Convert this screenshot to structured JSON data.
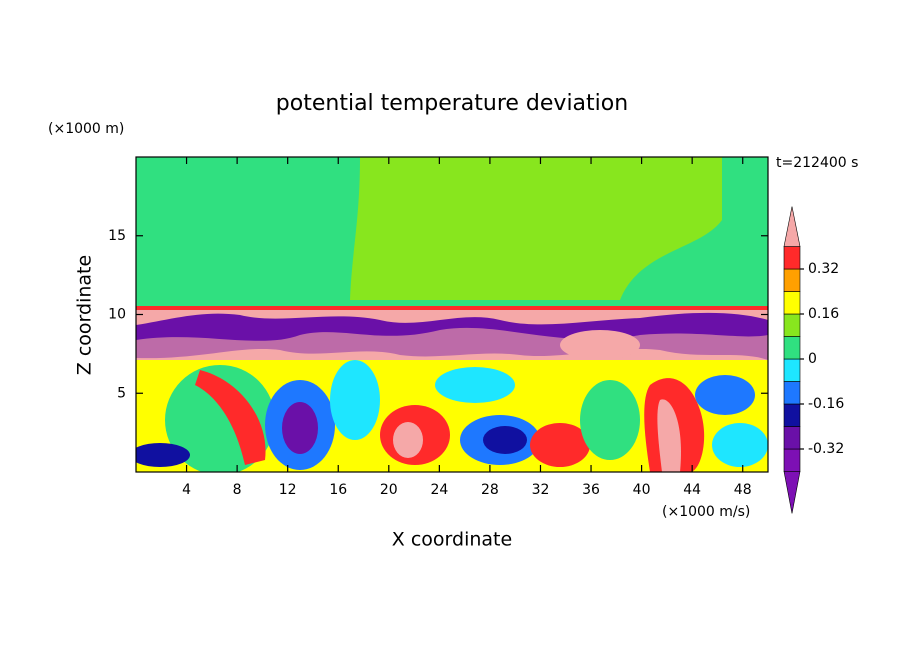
{
  "chart_data": {
    "type": "contour",
    "title": "potential temperature deviation",
    "y_unit": "(×1000 m)",
    "x_unit": "(×1000 m/s)",
    "time_label": "t=212400 s",
    "xlabel": "X coordinate",
    "ylabel": "Z coordinate",
    "xlim": [
      0,
      50
    ],
    "ylim": [
      0,
      20
    ],
    "xticks": [
      4,
      8,
      12,
      16,
      20,
      24,
      28,
      32,
      36,
      40,
      44,
      48
    ],
    "yticks": [
      5,
      10,
      15
    ],
    "levels": [
      -0.4,
      -0.32,
      -0.24,
      -0.16,
      -0.08,
      0,
      0.08,
      0.16,
      0.24,
      0.32,
      0.4
    ],
    "colors": [
      "#7d10b4",
      "#6a10a8",
      "#1010a0",
      "#1e78ff",
      "#1ee6ff",
      "#30e080",
      "#88e61e",
      "#ffff00",
      "#ffa000",
      "#ff2a2a",
      "#f5a8a8"
    ],
    "extend_colors": [
      "#7d10b4",
      "#f5a8a8"
    ],
    "colorbar_ticks": [
      0.32,
      0.16,
      0,
      -0.16,
      -0.32
    ]
  }
}
